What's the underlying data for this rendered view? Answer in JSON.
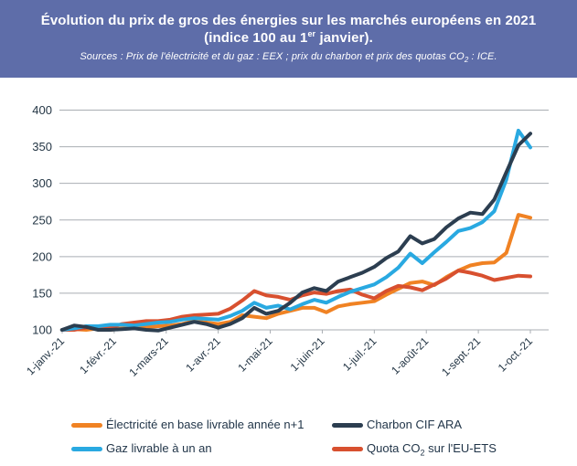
{
  "header": {
    "title_line1": "Évolution du prix de gros des énergies sur les marchés européens en 2021",
    "title_line2_prefix": "(indice 100 au 1",
    "title_line2_sup": "er",
    "title_line2_suffix": " janvier).",
    "sources_prefix": "Sources : Prix de l'électricité et du gaz : EEX ; prix du charbon et prix des quotas CO",
    "sources_sub": "2",
    "sources_suffix": " : ICE."
  },
  "colors": {
    "header_bg": "#5E6DA9",
    "header_text": "#FFFFFF",
    "grid": "#A9AEB3",
    "axis_text": "#253746",
    "legend_text": "#1F3347"
  },
  "chart_data": {
    "type": "line",
    "title": "Évolution du prix de gros des énergies sur les marchés européens en 2021 (indice 100 au 1er janvier)",
    "xlabel": "",
    "ylabel": "",
    "ylim": [
      100,
      400
    ],
    "y_ticks": [
      100,
      150,
      200,
      250,
      300,
      350,
      400
    ],
    "grid": true,
    "legend_position": "bottom",
    "x_tick_labels": [
      "1-janv.-21",
      "1-févr.-21",
      "1-mars-21",
      "1-avr.-21",
      "1-mai-21",
      "1-juin-21",
      "1-juil.-21",
      "1-août-21",
      "1-sept.-21",
      "1-oct.-21"
    ],
    "series": [
      {
        "name": "Électricité en base livrable année n+1",
        "color": "#F08223",
        "values": [
          100,
          101,
          100,
          102,
          100,
          102,
          103,
          104,
          105,
          106,
          108,
          112,
          110,
          108,
          111,
          120,
          118,
          116,
          122,
          126,
          130,
          130,
          124,
          132,
          135,
          137,
          139,
          148,
          156,
          164,
          166,
          161,
          172,
          181,
          188,
          191,
          192,
          205,
          257,
          253
        ]
      },
      {
        "name": "Charbon CIF ARA",
        "color": "#2C3E50",
        "values": [
          100,
          106,
          104,
          100,
          100,
          101,
          102,
          100,
          99,
          103,
          107,
          111,
          108,
          103,
          108,
          116,
          130,
          122,
          126,
          137,
          151,
          157,
          153,
          166,
          172,
          178,
          186,
          198,
          207,
          228,
          218,
          224,
          240,
          252,
          260,
          258,
          278,
          315,
          352,
          368
        ]
      },
      {
        "name": "Gaz livrable à un an",
        "color": "#29A9E1",
        "values": [
          100,
          102,
          105,
          105,
          107,
          107,
          106,
          108,
          110,
          111,
          114,
          116,
          115,
          114,
          119,
          126,
          137,
          130,
          133,
          128,
          135,
          141,
          137,
          145,
          152,
          157,
          162,
          172,
          185,
          204,
          191,
          206,
          220,
          235,
          239,
          247,
          262,
          305,
          372,
          349
        ]
      },
      {
        "name": "Quota CO2 sur l'EU-ETS",
        "color": "#D8502F",
        "values": [
          100,
          100,
          103,
          104,
          103,
          108,
          110,
          112,
          112,
          114,
          118,
          120,
          121,
          122,
          129,
          140,
          153,
          147,
          145,
          141,
          147,
          151,
          149,
          153,
          155,
          148,
          143,
          153,
          160,
          158,
          154,
          162,
          170,
          181,
          178,
          174,
          168,
          171,
          174,
          173
        ]
      }
    ]
  },
  "legend": {
    "items": [
      {
        "pre": "Électricité en base livrable année n+1",
        "sub": "",
        "post": ""
      },
      {
        "pre": "Charbon CIF ARA",
        "sub": "",
        "post": ""
      },
      {
        "pre": "Gaz livrable à un an",
        "sub": "",
        "post": ""
      },
      {
        "pre": "Quota CO",
        "sub": "2",
        "post": " sur l'EU-ETS"
      }
    ]
  }
}
